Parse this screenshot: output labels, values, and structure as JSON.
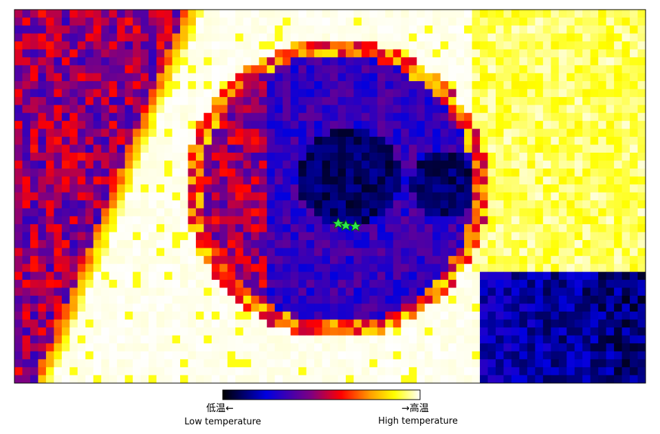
{
  "colorbar": {
    "low_label": "低温←",
    "low_caption": "Low temperature",
    "high_label": "→高温",
    "high_caption": "High temperature"
  }
}
